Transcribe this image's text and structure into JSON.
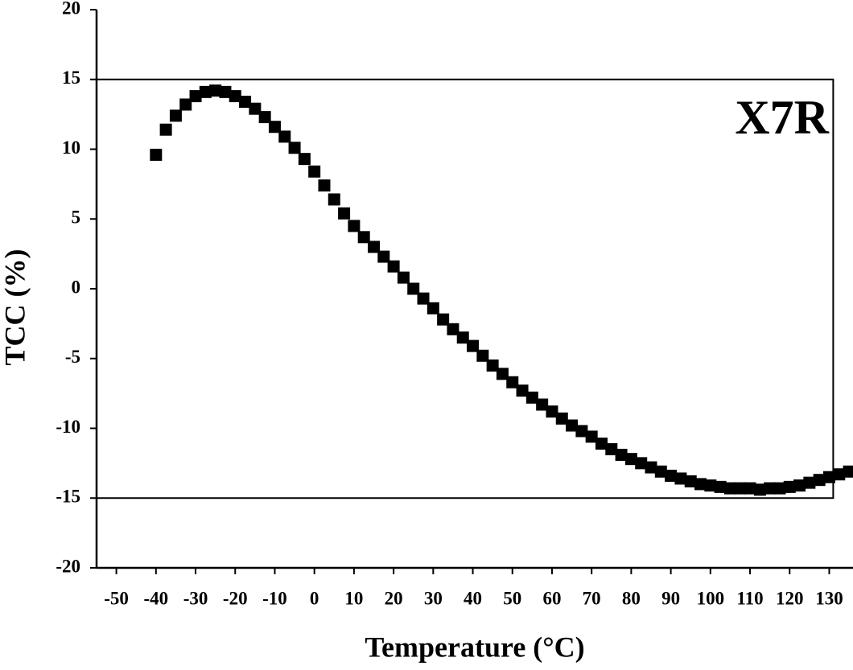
{
  "chart_data": {
    "type": "scatter",
    "annotation": "X7R",
    "xlabel": "Temperature (°C)",
    "ylabel": "TCC (%)",
    "x": [
      -40,
      -37.5,
      -35,
      -32.5,
      -30,
      -27.5,
      -25,
      -22.5,
      -20,
      -17.5,
      -15,
      -12.5,
      -10,
      -7.5,
      -5,
      -2.5,
      0,
      2.5,
      5,
      7.5,
      10,
      12.5,
      15,
      17.5,
      20,
      22.5,
      25,
      27.5,
      30,
      32.5,
      35,
      37.5,
      40,
      42.5,
      45,
      47.5,
      50,
      52.5,
      55,
      57.5,
      60,
      62.5,
      65,
      67.5,
      70,
      72.5,
      75,
      77.5,
      80,
      82.5,
      85,
      87.5,
      90,
      92.5,
      95,
      97.5,
      100,
      102.5,
      105,
      107.5,
      110,
      112.5,
      115,
      117.5,
      120,
      122.5,
      125,
      127.5,
      130,
      132.5,
      135
    ],
    "values": [
      9.6,
      11.4,
      12.4,
      13.2,
      13.8,
      14.1,
      14.2,
      14.1,
      13.8,
      13.4,
      12.9,
      12.3,
      11.6,
      10.9,
      10.1,
      9.3,
      8.4,
      7.4,
      6.4,
      5.4,
      4.5,
      3.7,
      3.0,
      2.3,
      1.6,
      0.8,
      0.0,
      -0.7,
      -1.4,
      -2.2,
      -2.9,
      -3.5,
      -4.1,
      -4.8,
      -5.5,
      -6.1,
      -6.7,
      -7.3,
      -7.8,
      -8.3,
      -8.8,
      -9.3,
      -9.8,
      -10.2,
      -10.6,
      -11.1,
      -11.5,
      -11.9,
      -12.2,
      -12.5,
      -12.8,
      -13.1,
      -13.4,
      -13.6,
      -13.8,
      -14.0,
      -14.1,
      -14.2,
      -14.3,
      -14.3,
      -14.3,
      -14.4,
      -14.3,
      -14.3,
      -14.2,
      -14.1,
      -13.9,
      -13.7,
      -13.5,
      -13.3,
      -13.1
    ],
    "color": "#000000",
    "xlim": [
      -55,
      136
    ],
    "xticks": [
      -50,
      -40,
      -30,
      -20,
      -10,
      0,
      10,
      20,
      30,
      40,
      50,
      60,
      70,
      80,
      90,
      100,
      110,
      120,
      130
    ],
    "ylim": [
      -20,
      20
    ],
    "yticks": [
      -20,
      -15,
      -10,
      -5,
      0,
      5,
      10,
      15,
      20
    ],
    "limit_box": {
      "x": [
        -55,
        131
      ],
      "y": [
        -15,
        15
      ]
    }
  }
}
